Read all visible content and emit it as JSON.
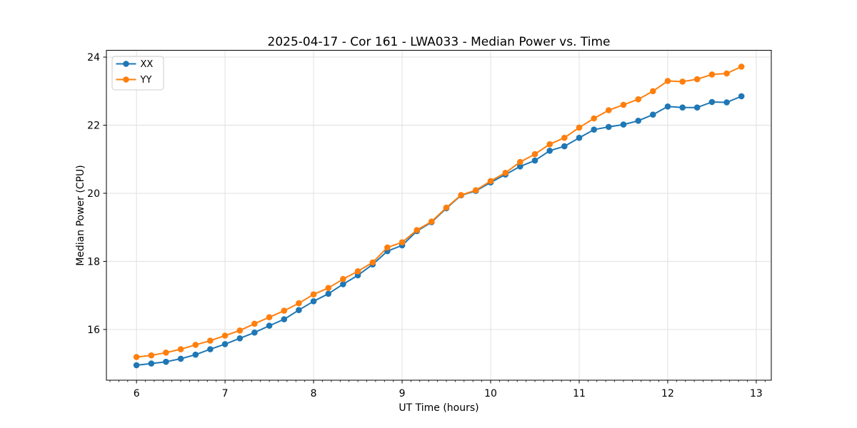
{
  "window": {
    "background": "#ffffff"
  },
  "colors": {
    "grid": "#e0e0e0",
    "axis": "#000000",
    "background": "#ffffff",
    "legend_border": "#cccccc",
    "series_xx": "#1f77b4",
    "series_yy": "#ff7f0e"
  },
  "chart_data": {
    "type": "line",
    "title": "2025-04-17 - Cor 161 - LWA033 - Median Power vs. Time",
    "xlabel": "UT Time (hours)",
    "ylabel": "Median Power (CPU)",
    "x": [
      6.0,
      6.167,
      6.333,
      6.5,
      6.667,
      6.833,
      7.0,
      7.167,
      7.333,
      7.5,
      7.667,
      7.833,
      8.0,
      8.167,
      8.333,
      8.5,
      8.667,
      8.833,
      9.0,
      9.167,
      9.333,
      9.5,
      9.667,
      9.833,
      10.0,
      10.167,
      10.333,
      10.5,
      10.667,
      10.833,
      11.0,
      11.167,
      11.333,
      11.5,
      11.667,
      11.833,
      12.0,
      12.167,
      12.333,
      12.5,
      12.667,
      12.833
    ],
    "series": [
      {
        "name": "XX",
        "color": "#1f77b4",
        "values": [
          14.95,
          15.0,
          15.05,
          15.14,
          15.26,
          15.42,
          15.57,
          15.74,
          15.91,
          16.11,
          16.3,
          16.57,
          16.83,
          17.05,
          17.33,
          17.59,
          17.91,
          18.3,
          18.47,
          18.89,
          19.15,
          19.56,
          19.94,
          20.07,
          20.32,
          20.55,
          20.79,
          20.96,
          21.25,
          21.38,
          21.63,
          21.87,
          21.95,
          22.02,
          22.13,
          22.31,
          22.55,
          22.52,
          22.52,
          22.68,
          22.67,
          22.85
        ]
      },
      {
        "name": "YY",
        "color": "#ff7f0e",
        "values": [
          15.19,
          15.24,
          15.32,
          15.42,
          15.55,
          15.67,
          15.82,
          15.97,
          16.17,
          16.36,
          16.55,
          16.77,
          17.03,
          17.22,
          17.48,
          17.71,
          17.97,
          18.41,
          18.56,
          18.92,
          19.17,
          19.58,
          19.95,
          20.09,
          20.36,
          20.6,
          20.92,
          21.15,
          21.44,
          21.63,
          21.93,
          22.2,
          22.44,
          22.6,
          22.76,
          23.0,
          23.3,
          23.28,
          23.35,
          23.49,
          23.52,
          23.72
        ]
      }
    ],
    "xlim": [
      5.66,
      13.17
    ],
    "ylim": [
      14.51,
      24.2
    ],
    "xticks": [
      6,
      7,
      8,
      9,
      10,
      11,
      12,
      13
    ],
    "yticks": [
      16,
      18,
      20,
      22,
      24
    ],
    "x_minor_step": 0.1,
    "grid": true,
    "legend": {
      "position": "upper-left",
      "entries": [
        "XX",
        "YY"
      ]
    }
  }
}
